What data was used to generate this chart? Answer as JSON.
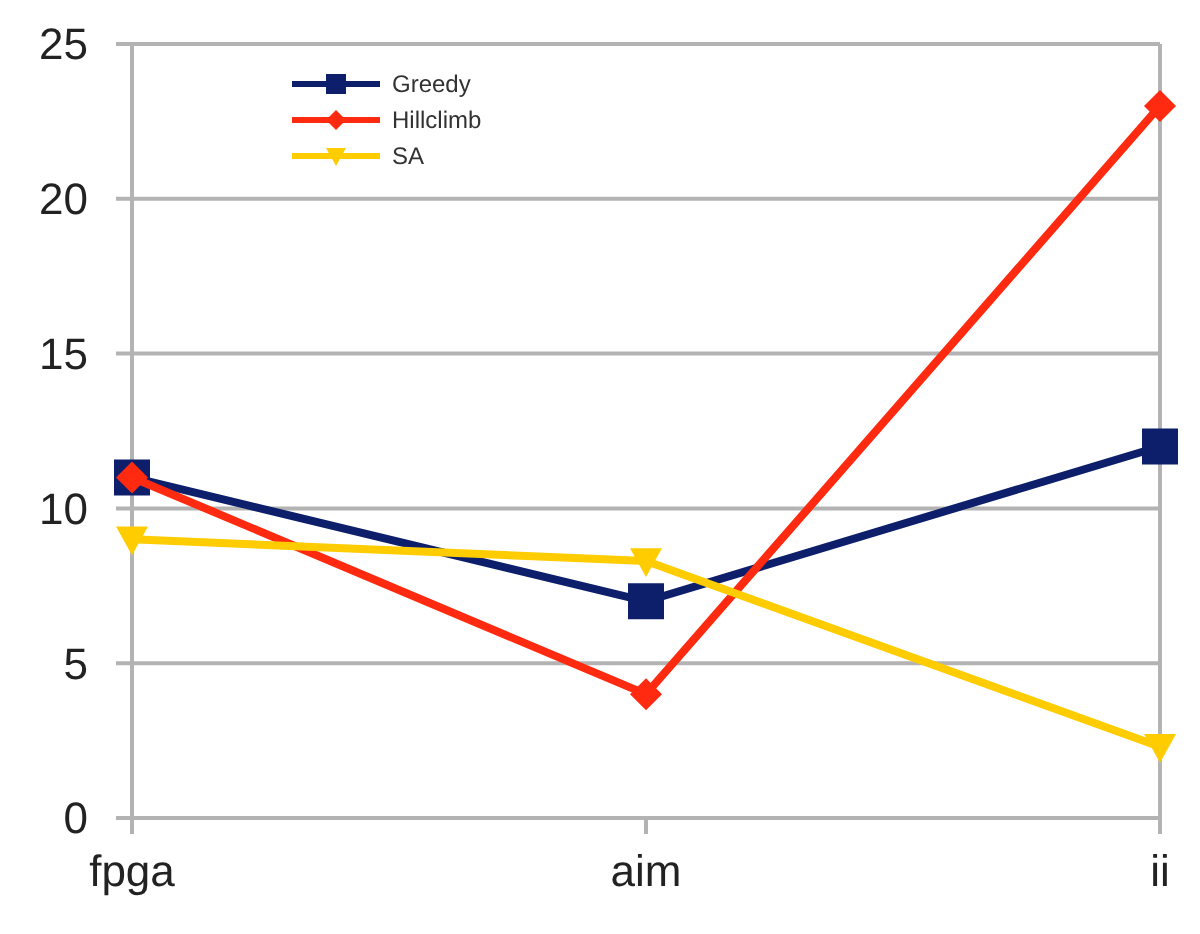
{
  "chart_data": {
    "type": "line",
    "categories": [
      "fpga",
      "aim",
      "ii"
    ],
    "series": [
      {
        "name": "Greedy",
        "color": "#0d1f6b",
        "marker": "square",
        "values": [
          11,
          7,
          12
        ]
      },
      {
        "name": "Hillclimb",
        "color": "#ff2a0f",
        "marker": "diamond",
        "values": [
          11,
          4,
          23
        ]
      },
      {
        "name": "SA",
        "color": "#ffcc00",
        "marker": "triangle",
        "values": [
          9,
          8.3,
          2.3
        ]
      }
    ],
    "ylim": [
      0,
      25
    ],
    "yticks": [
      0,
      5,
      10,
      15,
      20,
      25
    ],
    "grid": "y",
    "legend": "top left"
  }
}
